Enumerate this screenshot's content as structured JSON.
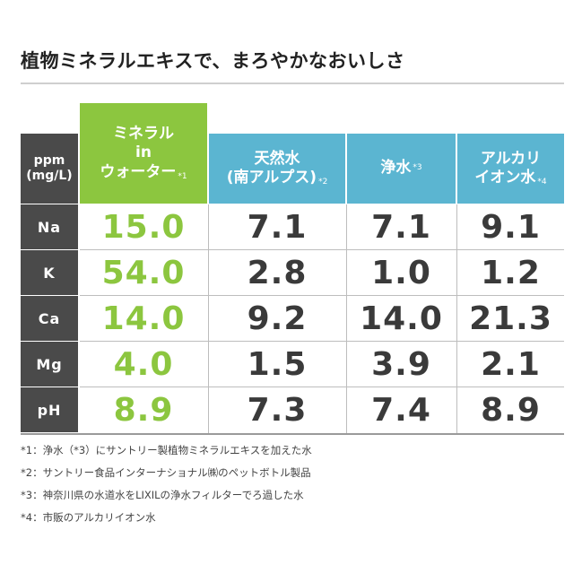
{
  "title": "植物ミネラルエキスで、まろやかなおいしさ",
  "table": {
    "corner": "ppm\n(mg/L)",
    "corner_line1": "ppm",
    "corner_line2": "(mg/L)",
    "columns": [
      {
        "line1": "ミネラル",
        "line2": "in",
        "line3": "ウォーター",
        "note": "*1"
      },
      {
        "line1": "天然水",
        "line2": "(南アルプス)",
        "note": "*2"
      },
      {
        "line1": "浄水",
        "note": "*3"
      },
      {
        "line1": "アルカリ",
        "line2": "イオン水",
        "note": "*4"
      }
    ],
    "rows": [
      {
        "label": "Na",
        "values": [
          "15.0",
          "7.1",
          "7.1",
          "9.1"
        ]
      },
      {
        "label": "K",
        "values": [
          "54.0",
          "2.8",
          "1.0",
          "1.2"
        ]
      },
      {
        "label": "Ca",
        "values": [
          "14.0",
          "9.2",
          "14.0",
          "21.3"
        ]
      },
      {
        "label": "Mg",
        "values": [
          "4.0",
          "1.5",
          "3.9",
          "2.1"
        ]
      },
      {
        "label": "pH",
        "values": [
          "8.9",
          "7.3",
          "7.4",
          "8.9"
        ]
      }
    ]
  },
  "notes": [
    "*1：浄水（*3）にサントリー製植物ミネラルエキスを加えた水",
    "*2：サントリー食品インターナショナル㈱のペットボトル製品",
    "*3：神奈川県の水道水をLIXILの浄水フィルターでろ過した水",
    "*4：市販のアルカリイオン水"
  ],
  "colors": {
    "accent_green": "#8cc63f",
    "header_blue": "#5bb5d1",
    "label_dark": "#4a4a4a"
  }
}
